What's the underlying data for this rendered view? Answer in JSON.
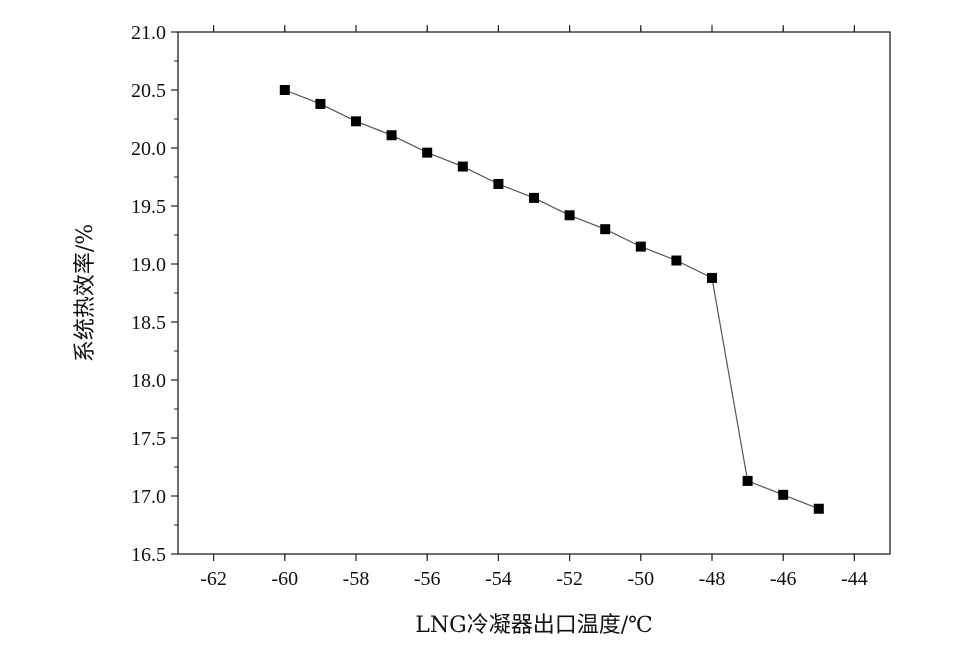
{
  "chart_data": {
    "type": "line",
    "title": "",
    "xlabel": "LNG冷凝器出口温度/℃",
    "ylabel": "系统热效率/%",
    "xlim": [
      -63,
      -43
    ],
    "ylim": [
      16.5,
      21.0
    ],
    "x_ticks": [
      -62,
      -60,
      -58,
      -56,
      -54,
      -52,
      -50,
      -48,
      -46,
      -44
    ],
    "x_tick_labels": [
      "-62",
      "-60",
      "-58",
      "-56",
      "-54",
      "-52",
      "-50",
      "-48",
      "-46",
      "-44"
    ],
    "y_ticks": [
      16.5,
      17.0,
      17.5,
      18.0,
      18.5,
      19.0,
      19.5,
      20.0,
      20.5,
      21.0
    ],
    "y_tick_labels": [
      "16.5",
      "17.0",
      "17.5",
      "18.0",
      "18.5",
      "19.0",
      "19.5",
      "20.0",
      "20.5",
      "21.0"
    ],
    "grid": false,
    "legend": "none",
    "marker": "square",
    "line_color": "#555555",
    "marker_color": "#000000",
    "series": [
      {
        "x": [
          -60,
          -59,
          -58,
          -57,
          -56,
          -55,
          -54,
          -53,
          -52,
          -51,
          -50,
          -49,
          -48,
          -47,
          -46,
          -45
        ],
        "values": [
          20.5,
          20.38,
          20.23,
          20.11,
          19.96,
          19.84,
          19.69,
          19.57,
          19.42,
          19.3,
          19.15,
          19.03,
          18.88,
          17.13,
          17.01,
          16.89
        ]
      }
    ]
  }
}
